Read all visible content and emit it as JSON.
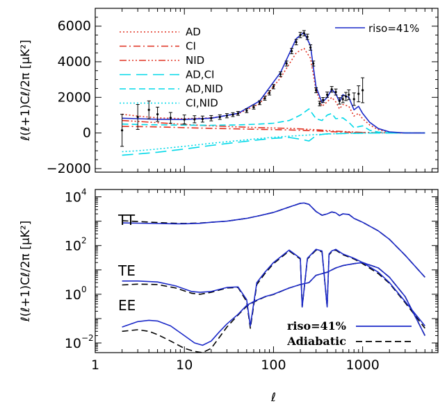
{
  "chart_data": [
    {
      "type": "line",
      "panel": "top",
      "xscale": "log",
      "xlim": [
        1,
        7000
      ],
      "ylim": [
        -2200,
        7000
      ],
      "yticks": [
        -2000,
        0,
        2000,
        4000,
        6000
      ],
      "yticklabels": [
        "−2000",
        "0",
        "2000",
        "4000",
        "6000"
      ],
      "ylabel": "ℓ(ℓ+1)Cℓ/2π [μK²]",
      "legend_position": "upper-left (components) / top-right (total)",
      "series": [
        {
          "name": "riso=41%",
          "color": "#1a28c8",
          "style": "solid",
          "x": [
            2,
            3,
            5,
            10,
            20,
            40,
            70,
            120,
            180,
            220,
            260,
            300,
            350,
            400,
            450,
            500,
            550,
            600,
            700,
            800,
            900,
            1000,
            1200,
            1500,
            2000,
            3000,
            5000
          ],
          "y": [
            830,
            800,
            770,
            760,
            830,
            1100,
            1800,
            3400,
            5300,
            5650,
            4900,
            2600,
            1700,
            2000,
            2450,
            2200,
            1750,
            2150,
            2000,
            1300,
            1500,
            1100,
            600,
            250,
            60,
            0,
            0
          ]
        },
        {
          "name": "AD",
          "color": "#e03020",
          "style": "dotted",
          "x": [
            2,
            3,
            5,
            10,
            20,
            40,
            70,
            120,
            180,
            220,
            260,
            300,
            350,
            400,
            450,
            500,
            550,
            600,
            700,
            800,
            900,
            1000,
            1200,
            1500,
            2000,
            3000,
            5000
          ],
          "y": [
            1050,
            950,
            850,
            800,
            850,
            1080,
            1650,
            3100,
            4500,
            4750,
            4200,
            2400,
            1500,
            1750,
            2000,
            1750,
            1350,
            1600,
            1500,
            950,
            1100,
            800,
            450,
            180,
            40,
            0,
            0
          ]
        },
        {
          "name": "CI",
          "color": "#e03020",
          "style": "dash-dot",
          "x": [
            2,
            3,
            5,
            10,
            20,
            40,
            70,
            100,
            150,
            200,
            300,
            500,
            1000,
            2000,
            5000
          ],
          "y": [
            370,
            360,
            340,
            300,
            260,
            230,
            200,
            190,
            170,
            150,
            120,
            60,
            20,
            5,
            0
          ]
        },
        {
          "name": "NID",
          "color": "#e03020",
          "style": "dash-triple-dot",
          "x": [
            2,
            3,
            5,
            10,
            20,
            40,
            70,
            100,
            150,
            200,
            300,
            500,
            1000,
            2000,
            5000
          ],
          "y": [
            700,
            650,
            580,
            480,
            400,
            340,
            300,
            280,
            260,
            230,
            180,
            100,
            30,
            5,
            0
          ]
        },
        {
          "name": "AD,CI",
          "color": "#00d8e8",
          "style": "long-dash",
          "x": [
            2,
            3,
            5,
            10,
            20,
            40,
            70,
            100,
            150,
            200,
            250,
            300,
            350,
            400,
            500,
            600,
            800,
            1000,
            1500,
            2000,
            5000
          ],
          "y": [
            -1250,
            -1180,
            -1080,
            -900,
            -700,
            -520,
            -380,
            -300,
            -250,
            -350,
            -450,
            -150,
            -80,
            -50,
            -40,
            -30,
            -20,
            -10,
            0,
            0,
            0
          ]
        },
        {
          "name": "AD,NID",
          "color": "#00d8e8",
          "style": "dashed",
          "x": [
            2,
            3,
            5,
            10,
            20,
            40,
            70,
            100,
            150,
            200,
            250,
            300,
            350,
            400,
            450,
            500,
            600,
            700,
            800,
            1000,
            1200,
            1500,
            2000,
            5000
          ],
          "y": [
            500,
            480,
            460,
            440,
            430,
            450,
            500,
            550,
            700,
            1000,
            1350,
            800,
            700,
            1000,
            1100,
            800,
            850,
            600,
            300,
            400,
            150,
            50,
            10,
            0
          ]
        },
        {
          "name": "CI,NID",
          "color": "#00d8e8",
          "style": "dotted",
          "x": [
            2,
            3,
            5,
            10,
            20,
            40,
            70,
            100,
            150,
            200,
            300,
            500,
            1000,
            2000,
            5000
          ],
          "y": [
            -1050,
            -1000,
            -900,
            -750,
            -580,
            -430,
            -310,
            -240,
            -180,
            -140,
            -90,
            -40,
            -10,
            0,
            0
          ]
        },
        {
          "name": "data",
          "type": "errorbar",
          "color": "#000000",
          "x": [
            2,
            3,
            4,
            5,
            7,
            10,
            13,
            16,
            20,
            25,
            30,
            35,
            40,
            50,
            60,
            70,
            80,
            90,
            100,
            120,
            140,
            160,
            180,
            200,
            220,
            240,
            260,
            280,
            300,
            330,
            360,
            400,
            450,
            500,
            550,
            600,
            650,
            700,
            800,
            900,
            1000
          ],
          "y": [
            150,
            900,
            1300,
            1050,
            850,
            760,
            770,
            780,
            830,
            890,
            970,
            1030,
            1100,
            1250,
            1450,
            1700,
            1950,
            2250,
            2600,
            3300,
            3900,
            4600,
            5100,
            5500,
            5600,
            5400,
            4800,
            3900,
            2400,
            1650,
            1850,
            2150,
            2450,
            2300,
            1800,
            1900,
            2050,
            2150,
            1900,
            2200,
            2400
          ],
          "err": [
            900,
            700,
            500,
            400,
            300,
            250,
            200,
            170,
            150,
            130,
            120,
            110,
            110,
            110,
            110,
            110,
            110,
            120,
            120,
            130,
            140,
            150,
            150,
            150,
            150,
            150,
            150,
            140,
            140,
            130,
            140,
            150,
            160,
            170,
            180,
            200,
            230,
            270,
            350,
            450,
            700
          ]
        }
      ]
    },
    {
      "type": "line",
      "panel": "bottom",
      "xscale": "log",
      "yscale": "log",
      "xlim": [
        1,
        7000
      ],
      "ylim": [
        0.004,
        20000
      ],
      "xticks": [
        1,
        10,
        100,
        1000
      ],
      "xticklabels": [
        "1",
        "10",
        "100",
        "1000"
      ],
      "xlabel": "ℓ",
      "ylabel": "ℓ(ℓ+1)Cℓ/2π [μK²]",
      "curve_labels": [
        "TT",
        "TE",
        "EE"
      ],
      "legend_position": "bottom-right",
      "series": [
        {
          "name": "riso=41%",
          "group": "TT",
          "color": "#1a28c8",
          "style": "solid",
          "x": [
            2,
            3,
            5,
            8,
            10,
            15,
            20,
            30,
            50,
            70,
            100,
            150,
            200,
            220,
            250,
            300,
            350,
            400,
            450,
            500,
            550,
            600,
            700,
            800,
            1000,
            1500,
            2000,
            3000,
            5000
          ],
          "y": [
            850,
            830,
            800,
            780,
            780,
            820,
            900,
            1000,
            1300,
            1700,
            2300,
            3800,
            5400,
            5600,
            4900,
            2500,
            1750,
            2000,
            2400,
            2200,
            1700,
            2000,
            1900,
            1300,
            900,
            400,
            180,
            40,
            5
          ]
        },
        {
          "name": "Adiabatic",
          "group": "TT",
          "color": "#000000",
          "style": "dashed",
          "x": [
            2,
            3,
            5,
            8,
            10,
            15,
            20,
            30,
            50,
            70,
            100,
            150,
            200,
            220,
            250,
            300,
            350,
            400,
            450,
            500,
            550,
            600,
            700,
            800,
            1000,
            1500,
            2000,
            3000,
            5000
          ],
          "y": [
            1050,
            970,
            880,
            820,
            810,
            840,
            900,
            1000,
            1300,
            1700,
            2300,
            3800,
            5400,
            5600,
            4900,
            2500,
            1750,
            2000,
            2400,
            2200,
            1700,
            2000,
            1900,
            1300,
            900,
            400,
            180,
            40,
            5
          ]
        },
        {
          "name": "riso=41%",
          "group": "TE",
          "color": "#1a28c8",
          "style": "solid",
          "x": [
            2,
            3,
            5,
            8,
            12,
            15,
            20,
            30,
            40,
            50,
            55,
            65,
            80,
            100,
            150,
            200,
            210,
            240,
            300,
            350,
            400,
            420,
            450,
            500,
            600,
            800,
            1000,
            1500,
            2000,
            3000,
            5000
          ],
          "y": [
            3.5,
            3.5,
            3.2,
            2.2,
            1.3,
            1.2,
            1.3,
            1.9,
            2.0,
            0.6,
            0.05,
            3,
            8,
            20,
            65,
            30,
            0.3,
            30,
            70,
            60,
            0.3,
            45,
            60,
            70,
            45,
            30,
            20,
            8,
            3,
            0.5,
            0.05
          ]
        },
        {
          "name": "Adiabatic",
          "group": "TE",
          "color": "#000000",
          "style": "dashed",
          "x": [
            2,
            3,
            5,
            8,
            12,
            15,
            20,
            30,
            40,
            50,
            55,
            65,
            80,
            100,
            150,
            200,
            210,
            240,
            300,
            350,
            400,
            420,
            450,
            500,
            600,
            800,
            1000,
            1500,
            2000,
            3000,
            5000
          ],
          "y": [
            2.4,
            2.6,
            2.5,
            1.8,
            1.1,
            1.0,
            1.2,
            1.8,
            1.9,
            0.5,
            0.04,
            2.5,
            7,
            18,
            60,
            28,
            0.3,
            28,
            65,
            55,
            0.3,
            42,
            55,
            65,
            42,
            28,
            18,
            7,
            2.8,
            0.45,
            0.04
          ]
        },
        {
          "name": "riso=41%",
          "group": "EE",
          "color": "#1a28c8",
          "style": "solid",
          "x": [
            2,
            3,
            4,
            5,
            7,
            10,
            13,
            16,
            20,
            25,
            30,
            40,
            50,
            60,
            80,
            100,
            150,
            200,
            250,
            300,
            400,
            500,
            600,
            800,
            1000,
            1500,
            2000,
            3000,
            5000
          ],
          "y": [
            0.045,
            0.075,
            0.085,
            0.08,
            0.05,
            0.02,
            0.01,
            0.008,
            0.012,
            0.03,
            0.06,
            0.15,
            0.35,
            0.5,
            0.8,
            1.0,
            1.8,
            2.5,
            3,
            6,
            8,
            12,
            15,
            18,
            20,
            12,
            5,
            0.8,
            0.02
          ]
        },
        {
          "name": "Adiabatic",
          "group": "EE",
          "color": "#000000",
          "style": "dashed",
          "x": [
            2,
            3,
            4,
            5,
            7,
            10,
            13,
            16,
            20,
            25,
            30,
            40,
            50,
            60,
            80,
            100,
            150,
            200,
            250,
            300,
            400,
            500,
            600,
            800,
            1000,
            1500,
            2000,
            3000,
            5000
          ],
          "y": [
            0.03,
            0.035,
            0.03,
            0.022,
            0.012,
            0.006,
            0.0045,
            0.004,
            0.006,
            0.018,
            0.045,
            0.14,
            0.32,
            0.48,
            0.78,
            0.98,
            1.8,
            2.5,
            3,
            6,
            8,
            12,
            15,
            18,
            20,
            12,
            5,
            0.8,
            0.02
          ]
        }
      ]
    }
  ]
}
